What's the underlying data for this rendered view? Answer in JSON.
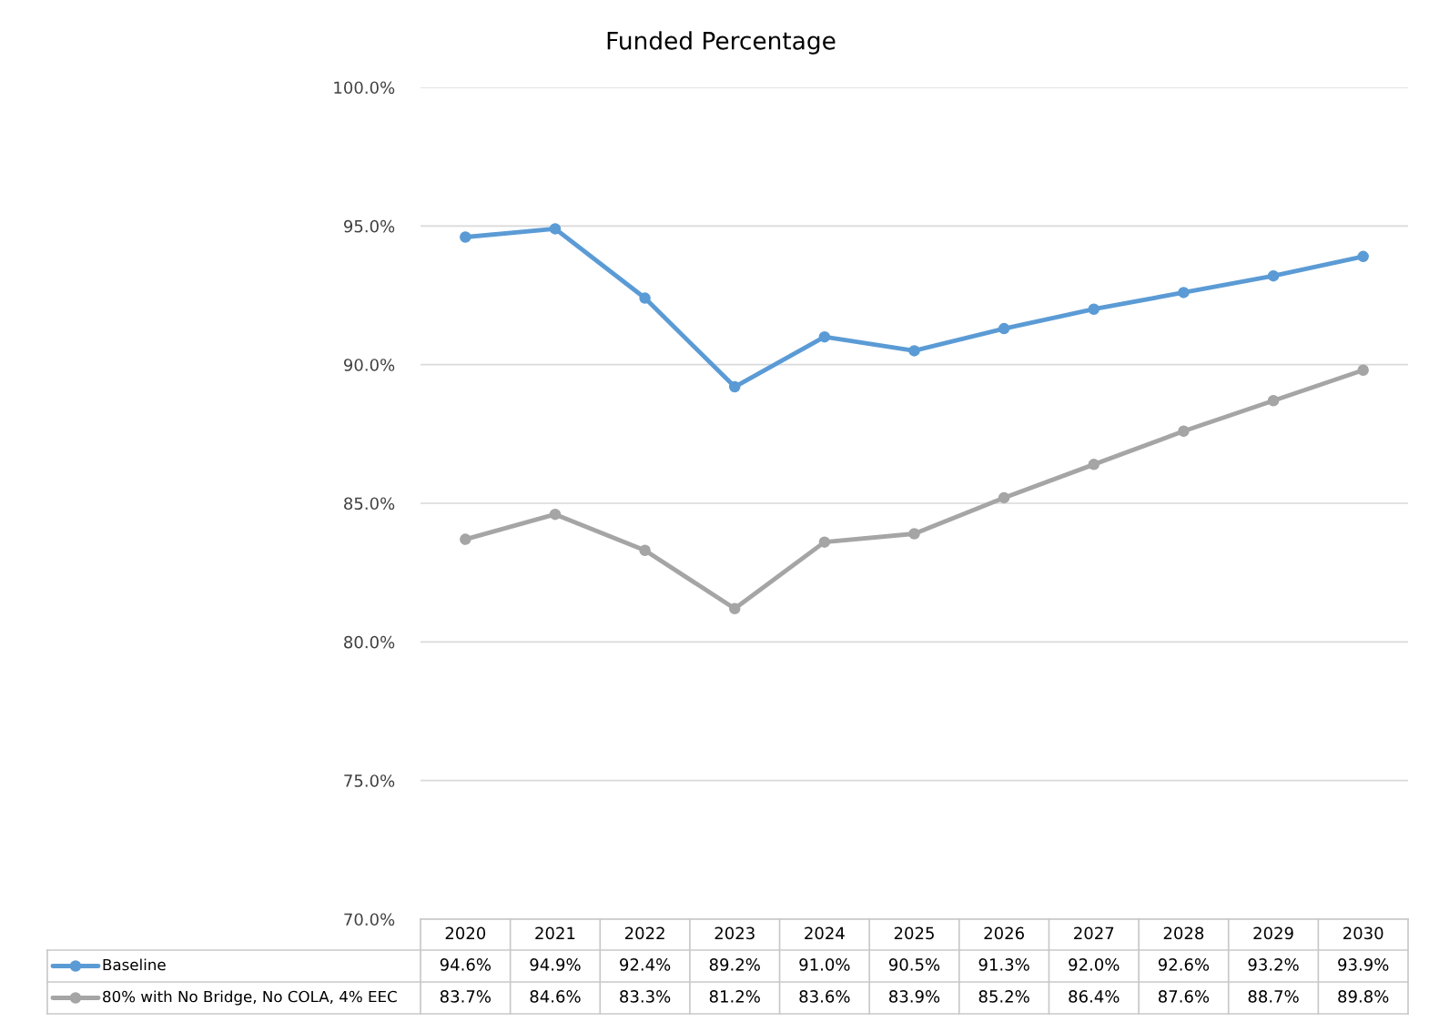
{
  "chart_data": {
    "type": "line",
    "title": "Funded Percentage",
    "categories": [
      "2020",
      "2021",
      "2022",
      "2023",
      "2024",
      "2025",
      "2026",
      "2027",
      "2028",
      "2029",
      "2030"
    ],
    "series": [
      {
        "name": "Baseline",
        "color": "#5b9bd5",
        "values": [
          94.6,
          94.9,
          92.4,
          89.2,
          91.0,
          90.5,
          91.3,
          92.0,
          92.6,
          93.2,
          93.9
        ],
        "value_labels": [
          "94.6%",
          "94.9%",
          "92.4%",
          "89.2%",
          "91.0%",
          "90.5%",
          "91.3%",
          "92.0%",
          "92.6%",
          "93.2%",
          "93.9%"
        ]
      },
      {
        "name": "80% with No Bridge, No COLA, 4% EEC",
        "color": "#a5a5a5",
        "values": [
          83.7,
          84.6,
          83.3,
          81.2,
          83.6,
          83.9,
          85.2,
          86.4,
          87.6,
          88.7,
          89.8
        ],
        "value_labels": [
          "83.7%",
          "84.6%",
          "83.3%",
          "81.2%",
          "83.6%",
          "83.9%",
          "85.2%",
          "86.4%",
          "87.6%",
          "88.7%",
          "89.8%"
        ]
      }
    ],
    "ylim": [
      70,
      100
    ],
    "yticks": [
      {
        "value": 70,
        "label": "70.0%"
      },
      {
        "value": 75,
        "label": "75.0%"
      },
      {
        "value": 80,
        "label": "80.0%"
      },
      {
        "value": 85,
        "label": "85.0%"
      },
      {
        "value": 90,
        "label": "90.0%"
      },
      {
        "value": 95,
        "label": "95.0%"
      },
      {
        "value": 100,
        "label": "100.0%"
      }
    ],
    "grid": "y",
    "legend": "bottom",
    "marker": "circle",
    "line_style": "solid"
  }
}
